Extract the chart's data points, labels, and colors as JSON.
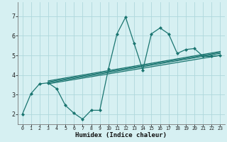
{
  "xlabel": "Humidex (Indice chaleur)",
  "xlim": [
    -0.5,
    23.5
  ],
  "ylim": [
    1.5,
    7.7
  ],
  "bg_color": "#d6f0f2",
  "grid_color": "#afd8dc",
  "line_color": "#1a7570",
  "xticks": [
    0,
    1,
    2,
    3,
    4,
    5,
    6,
    7,
    8,
    9,
    10,
    11,
    12,
    13,
    14,
    15,
    16,
    17,
    18,
    19,
    20,
    21,
    22,
    23
  ],
  "yticks": [
    2,
    3,
    4,
    5,
    6,
    7
  ],
  "main_x": [
    0,
    1,
    2,
    3,
    4,
    5,
    6,
    7,
    8,
    9,
    10,
    11,
    12,
    13,
    14,
    15,
    16,
    17,
    18,
    19,
    20,
    21,
    22,
    23
  ],
  "main_y": [
    2.0,
    3.05,
    3.55,
    3.6,
    3.3,
    2.45,
    2.05,
    1.75,
    2.2,
    2.2,
    4.3,
    6.1,
    6.95,
    5.6,
    4.25,
    6.1,
    6.4,
    6.1,
    5.1,
    5.3,
    5.35,
    4.95,
    4.95,
    5.0
  ],
  "trend_lines": [
    {
      "x": [
        3,
        23
      ],
      "y": [
        3.55,
        5.0
      ]
    },
    {
      "x": [
        3,
        23
      ],
      "y": [
        3.6,
        5.1
      ]
    },
    {
      "x": [
        3,
        23
      ],
      "y": [
        3.65,
        5.15
      ]
    },
    {
      "x": [
        3,
        23
      ],
      "y": [
        3.7,
        5.2
      ]
    }
  ]
}
